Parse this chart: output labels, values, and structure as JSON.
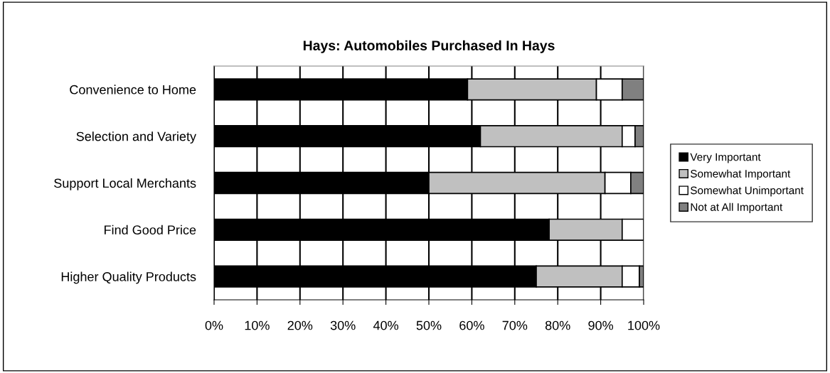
{
  "chart_data": {
    "type": "bar",
    "orientation": "horizontal",
    "stacked": true,
    "title": "Hays: Automobiles Purchased In Hays",
    "categories": [
      "Convenience to Home",
      "Selection and Variety",
      "Support Local Merchants",
      "Find Good Price",
      "Higher Quality Products"
    ],
    "series": [
      {
        "name": "Very Important",
        "color": "#000000",
        "values": [
          59,
          62,
          50,
          78,
          75
        ]
      },
      {
        "name": "Somewhat Important",
        "color": "#c0c0c0",
        "values": [
          30,
          33,
          41,
          17,
          20
        ]
      },
      {
        "name": "Somewhat Unimportant",
        "color": "#ffffff",
        "values": [
          6,
          3,
          6,
          5,
          4
        ]
      },
      {
        "name": "Not at All Important",
        "color": "#808080",
        "values": [
          5,
          2,
          3,
          null,
          1
        ]
      }
    ],
    "xlim": [
      0,
      100
    ],
    "xticks": [
      {
        "value": 0,
        "label": "0%"
      },
      {
        "value": 10,
        "label": "10%"
      },
      {
        "value": 20,
        "label": "20%"
      },
      {
        "value": 30,
        "label": "30%"
      },
      {
        "value": 40,
        "label": "40%"
      },
      {
        "value": 50,
        "label": "50%"
      },
      {
        "value": 60,
        "label": "60%"
      },
      {
        "value": 70,
        "label": "70%"
      },
      {
        "value": 80,
        "label": "80%"
      },
      {
        "value": 90,
        "label": "90%"
      },
      {
        "value": 100,
        "label": "100%"
      }
    ],
    "grid": "x",
    "legend": "right"
  }
}
